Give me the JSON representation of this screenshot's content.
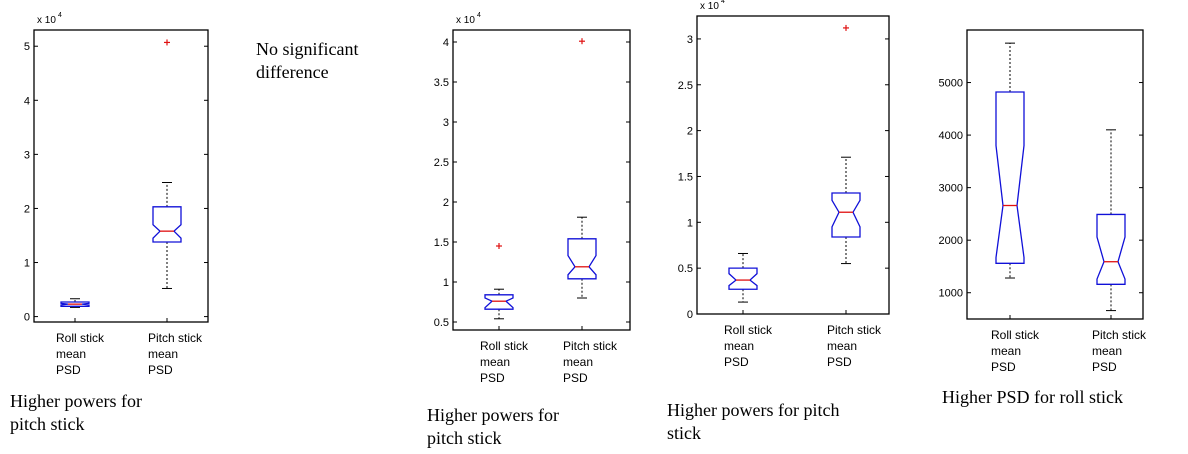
{
  "note": {
    "line1": "No significant",
    "line2": "difference"
  },
  "chart_data": [
    {
      "type": "boxplot",
      "multiplier": "x 10",
      "exponent": "4",
      "ylim": [
        -0.1,
        5.3
      ],
      "yticks": [
        0,
        1,
        2,
        3,
        4,
        5
      ],
      "yticklabels": [
        "0",
        "1",
        "2",
        "3",
        "4",
        "5"
      ],
      "categories": [
        [
          "Roll stick",
          "mean",
          "PSD"
        ],
        [
          "Pitch stick",
          "mean",
          "PSD"
        ]
      ],
      "boxes": [
        {
          "whisker_low": 0.17,
          "q1": 0.19,
          "notch_low": 0.215,
          "median": 0.23,
          "notch_high": 0.245,
          "q3": 0.27,
          "whisker_high": 0.33,
          "outliers": []
        },
        {
          "whisker_low": 0.52,
          "q1": 1.38,
          "notch_low": 1.45,
          "median": 1.58,
          "notch_high": 1.7,
          "q3": 2.03,
          "whisker_high": 2.48,
          "outliers": [
            5.07
          ]
        }
      ],
      "caption": [
        "Higher powers for",
        "pitch stick"
      ]
    },
    {
      "type": "boxplot",
      "multiplier": "x 10",
      "exponent": "4",
      "ylim": [
        0.4,
        4.15
      ],
      "yticks": [
        0.5,
        1,
        1.5,
        2,
        2.5,
        3,
        3.5,
        4
      ],
      "yticklabels": [
        "0.5",
        "1",
        "1.5",
        "2",
        "2.5",
        "3",
        "3.5",
        "4"
      ],
      "categories": [
        [
          "Roll stick",
          "mean",
          "PSD"
        ],
        [
          "Pitch stick",
          "mean",
          "PSD"
        ]
      ],
      "boxes": [
        {
          "whisker_low": 0.54,
          "q1": 0.66,
          "notch_low": 0.68,
          "median": 0.76,
          "notch_high": 0.8,
          "q3": 0.84,
          "whisker_high": 0.91,
          "outliers": [
            1.45
          ]
        },
        {
          "whisker_low": 0.8,
          "q1": 1.04,
          "notch_low": 1.09,
          "median": 1.19,
          "notch_high": 1.33,
          "q3": 1.54,
          "whisker_high": 1.81,
          "outliers": [
            4.01
          ]
        }
      ],
      "caption": [
        "Higher powers for",
        "pitch stick"
      ]
    },
    {
      "type": "boxplot",
      "multiplier": "x 10",
      "exponent": "4",
      "ylim": [
        0,
        3.25
      ],
      "yticks": [
        0,
        0.5,
        1,
        1.5,
        2,
        2.5,
        3
      ],
      "yticklabels": [
        "0",
        "0.5",
        "1",
        "1.5",
        "2",
        "2.5",
        "3"
      ],
      "categories": [
        [
          "Roll stick",
          "mean",
          "PSD"
        ],
        [
          "Pitch stick",
          "mean",
          "PSD"
        ]
      ],
      "boxes": [
        {
          "whisker_low": 0.13,
          "q1": 0.27,
          "notch_low": 0.31,
          "median": 0.37,
          "notch_high": 0.44,
          "q3": 0.5,
          "whisker_high": 0.66,
          "outliers": []
        },
        {
          "whisker_low": 0.55,
          "q1": 0.84,
          "notch_low": 0.95,
          "median": 1.11,
          "notch_high": 1.24,
          "q3": 1.32,
          "whisker_high": 1.71,
          "outliers": [
            3.12
          ]
        }
      ],
      "caption": [
        "Higher powers for pitch",
        "stick"
      ]
    },
    {
      "type": "boxplot",
      "multiplier": "",
      "exponent": "",
      "ylim": [
        500,
        6000
      ],
      "yticks": [
        1000,
        2000,
        3000,
        4000,
        5000
      ],
      "yticklabels": [
        "1000",
        "2000",
        "3000",
        "4000",
        "5000"
      ],
      "categories": [
        [
          "Roll stick",
          "mean",
          "PSD"
        ],
        [
          "Pitch stick",
          "mean",
          "PSD"
        ]
      ],
      "boxes": [
        {
          "whisker_low": 1280,
          "q1": 1560,
          "notch_low": 1670,
          "median": 2660,
          "notch_high": 3800,
          "q3": 4820,
          "whisker_high": 5750,
          "outliers": []
        },
        {
          "whisker_low": 660,
          "q1": 1160,
          "notch_low": 1260,
          "median": 1590,
          "notch_high": 2060,
          "q3": 2490,
          "whisker_high": 4100,
          "outliers": []
        }
      ],
      "caption": [
        "Higher PSD for roll stick"
      ]
    }
  ]
}
